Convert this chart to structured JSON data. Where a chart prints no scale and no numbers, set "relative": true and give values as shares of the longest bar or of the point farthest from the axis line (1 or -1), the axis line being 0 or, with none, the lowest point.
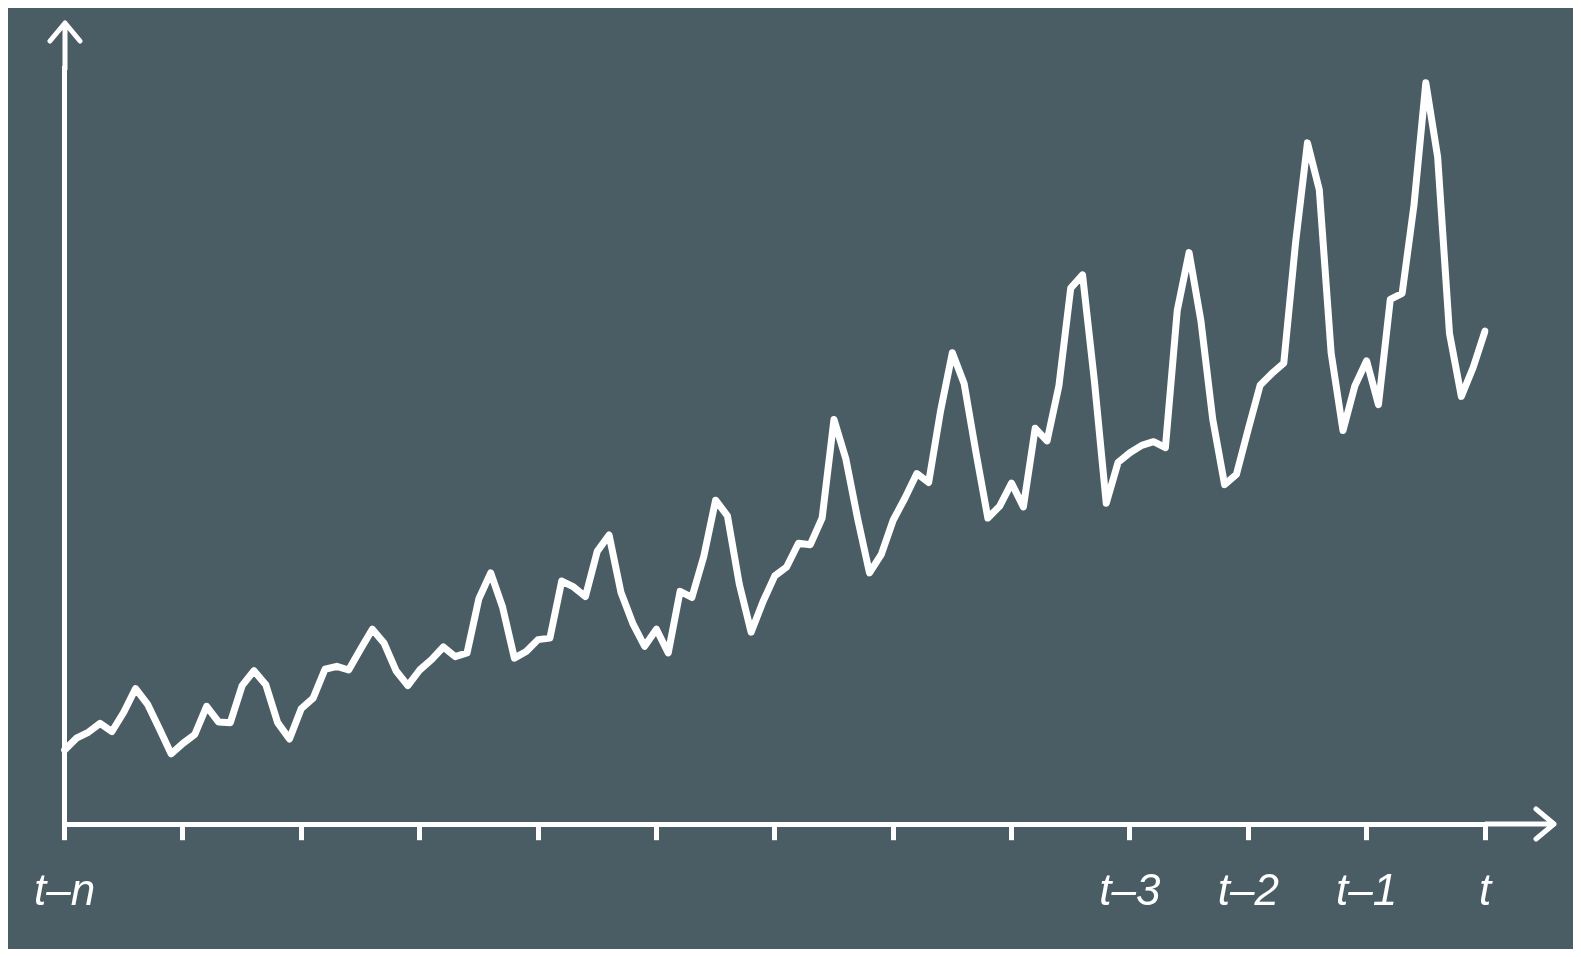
{
  "chart_data": {
    "type": "line",
    "relative": true,
    "color": "#ffffff",
    "grid": false,
    "legend": false,
    "marker": "none",
    "line_style": "solid",
    "tick_labels": "x",
    "categories": [
      "t–n",
      null,
      null,
      null,
      null,
      null,
      null,
      null,
      null,
      null,
      null,
      null,
      null,
      null,
      null,
      null,
      null,
      null,
      null,
      null,
      null,
      null,
      null,
      null,
      null,
      null,
      null,
      null,
      null,
      null,
      null,
      null,
      null,
      null,
      null,
      null,
      null,
      null,
      null,
      null,
      null,
      null,
      null,
      null,
      null,
      null,
      null,
      null,
      null,
      null,
      null,
      null,
      null,
      null,
      null,
      null,
      null,
      null,
      null,
      null,
      null,
      null,
      null,
      null,
      null,
      null,
      null,
      null,
      null,
      null,
      null,
      null,
      null,
      null,
      null,
      null,
      null,
      null,
      null,
      null,
      null,
      null,
      null,
      null,
      null,
      null,
      null,
      null,
      null,
      null,
      "t–3",
      null,
      null,
      null,
      null,
      null,
      null,
      null,
      null,
      null,
      "t–2",
      null,
      null,
      null,
      null,
      null,
      null,
      null,
      null,
      null,
      "t–1",
      null,
      null,
      null,
      null,
      null,
      null,
      null,
      null,
      null,
      "t"
    ],
    "values": [
      0.1,
      0.116,
      0.124,
      0.136,
      0.125,
      0.151,
      0.183,
      0.162,
      0.129,
      0.095,
      0.109,
      0.121,
      0.159,
      0.138,
      0.137,
      0.187,
      0.207,
      0.188,
      0.137,
      0.115,
      0.156,
      0.17,
      0.209,
      0.213,
      0.208,
      0.236,
      0.263,
      0.244,
      0.207,
      0.187,
      0.208,
      0.222,
      0.239,
      0.226,
      0.231,
      0.304,
      0.339,
      0.293,
      0.224,
      0.233,
      0.249,
      0.251,
      0.328,
      0.32,
      0.307,
      0.368,
      0.39,
      0.313,
      0.271,
      0.24,
      0.263,
      0.231,
      0.314,
      0.306,
      0.361,
      0.437,
      0.416,
      0.324,
      0.259,
      0.3,
      0.335,
      0.347,
      0.379,
      0.377,
      0.413,
      0.546,
      0.493,
      0.412,
      0.339,
      0.364,
      0.41,
      0.44,
      0.473,
      0.461,
      0.557,
      0.636,
      0.594,
      0.501,
      0.413,
      0.429,
      0.46,
      0.428,
      0.534,
      0.517,
      0.591,
      0.723,
      0.741,
      0.598,
      0.433,
      0.488,
      0.501,
      0.511,
      0.516,
      0.508,
      0.693,
      0.771,
      0.679,
      0.546,
      0.458,
      0.472,
      0.533,
      0.592,
      0.608,
      0.622,
      0.785,
      0.919,
      0.856,
      0.636,
      0.531,
      0.591,
      0.625,
      0.566,
      0.708,
      0.716,
      0.835,
      1,
      0.9,
      0.662,
      0.577,
      0.616,
      0.665
    ]
  }
}
